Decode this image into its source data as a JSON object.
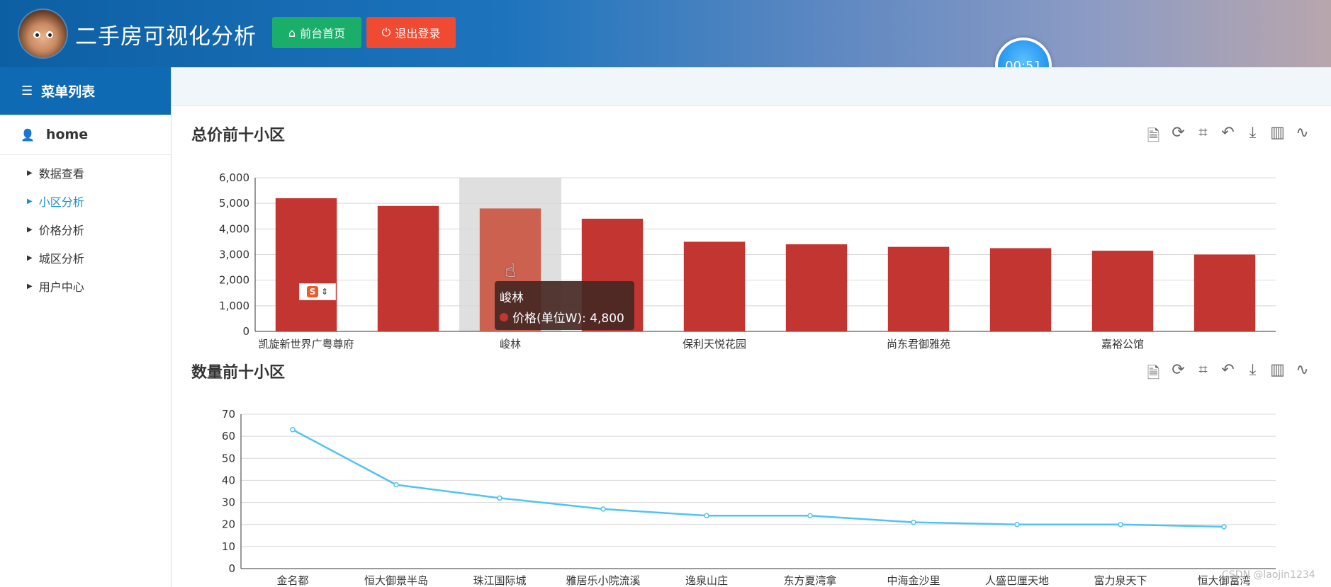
{
  "header": {
    "title": "二手房可视化分析",
    "home_button": "前台首页",
    "logout_button": "退出登录",
    "timer": "00:51"
  },
  "sidebar": {
    "menu_title": "菜单列表",
    "home_label": "home",
    "items": [
      {
        "label": "数据查看",
        "active": false
      },
      {
        "label": "小区分析",
        "active": true
      },
      {
        "label": "价格分析",
        "active": false
      },
      {
        "label": "城区分析",
        "active": false
      },
      {
        "label": "用户中心",
        "active": false
      }
    ]
  },
  "sections": {
    "top_price_title": "总价前十小区",
    "top_count_title": "数量前十小区"
  },
  "toolbox_icons": [
    "data-view-icon",
    "restore-icon",
    "zoom-icon",
    "zoom-reset-icon",
    "download-icon",
    "bar-switch-icon",
    "line-switch-icon"
  ],
  "tooltip": {
    "name": "峻林",
    "series_label": "价格(单位W): 4,800"
  },
  "ime": {
    "badge": "S"
  },
  "watermark": "CSDN @laojin1234",
  "colors": {
    "bar": "#c23531",
    "line": "#4fc4f2",
    "highlight": "#dddddd"
  },
  "chart_data": [
    {
      "type": "bar",
      "title": "总价前十小区",
      "series": [
        {
          "name": "价格(单位W)",
          "values": [
            5200,
            4900,
            4800,
            4400,
            3500,
            3400,
            3300,
            3250,
            3150,
            3000
          ]
        }
      ],
      "categories": [
        "凯旋新世界广粤尊府",
        "",
        "峻林",
        "",
        "保利天悦花园",
        "",
        "尚东君御雅苑",
        "",
        "嘉裕公馆",
        ""
      ],
      "yticks": [
        "0",
        "1,000",
        "2,000",
        "3,000",
        "4,000",
        "5,000",
        "6,000"
      ],
      "ylim": [
        0,
        6000
      ],
      "highlight_index": 2,
      "grid": true
    },
    {
      "type": "line",
      "title": "数量前十小区",
      "categories": [
        "金名都",
        "恒大御景半岛",
        "珠江国际城",
        "雅居乐小院流溪",
        "逸泉山庄",
        "东方夏湾拿",
        "中海金沙里",
        "人盛巴厘天地",
        "富力泉天下",
        "恒大御富湾"
      ],
      "series": [
        {
          "values": [
            63,
            38,
            32,
            27,
            24,
            24,
            21,
            20,
            20,
            19
          ]
        }
      ],
      "yticks": [
        "0",
        "10",
        "20",
        "30",
        "40",
        "50",
        "60",
        "70"
      ],
      "ylim": [
        0,
        70
      ],
      "grid": true
    }
  ]
}
